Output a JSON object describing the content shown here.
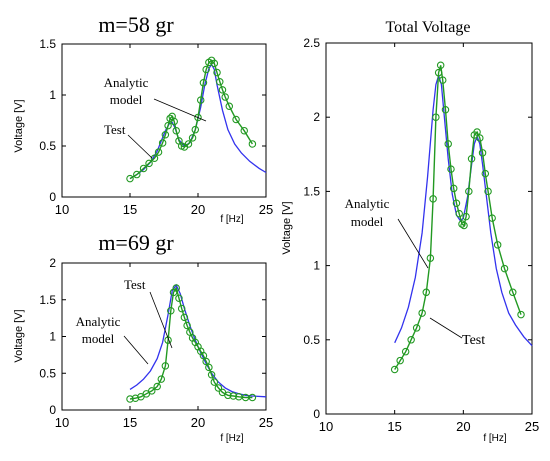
{
  "chart_data": [
    {
      "id": "m58",
      "type": "line",
      "title": "m=58 gr",
      "xlabel": "f [Hz]",
      "ylabel": "Voltage [V]",
      "xlim": [
        10,
        25
      ],
      "ylim": [
        0,
        1.5
      ],
      "xticks": [
        10,
        15,
        20,
        25
      ],
      "yticks": [
        0,
        0.5,
        1,
        1.5
      ],
      "tick_labels_x": [
        "10",
        "15",
        "20",
        "25"
      ],
      "tick_labels_y": [
        "0",
        "0.5",
        "1",
        "1.5"
      ],
      "annotations": [
        {
          "lines": [
            "Analytic",
            "model"
          ]
        },
        {
          "lines": [
            "Test"
          ]
        }
      ],
      "series": [
        {
          "name": "Analytic model",
          "color": "#3333ee",
          "style": "line",
          "x": [
            15.0,
            15.5,
            16.0,
            16.5,
            17.0,
            17.3,
            17.6,
            17.9,
            18.1,
            18.3,
            18.6,
            19.0,
            19.4,
            19.8,
            20.2,
            20.5,
            20.8,
            21.0,
            21.2,
            21.4,
            21.8,
            22.2,
            22.7,
            23.2,
            23.8,
            24.5,
            25.0
          ],
          "y": [
            0.18,
            0.22,
            0.27,
            0.34,
            0.45,
            0.55,
            0.65,
            0.72,
            0.73,
            0.68,
            0.56,
            0.5,
            0.53,
            0.66,
            0.88,
            1.1,
            1.26,
            1.3,
            1.25,
            1.1,
            0.85,
            0.66,
            0.52,
            0.43,
            0.35,
            0.28,
            0.24
          ]
        },
        {
          "name": "Test",
          "color": "#229922",
          "style": "line+marker",
          "x": [
            15.0,
            15.5,
            16.0,
            16.4,
            16.8,
            17.1,
            17.4,
            17.6,
            17.8,
            17.95,
            18.1,
            18.25,
            18.4,
            18.6,
            18.8,
            19.0,
            19.3,
            19.6,
            19.8,
            20.0,
            20.2,
            20.4,
            20.6,
            20.8,
            21.0,
            21.2,
            21.4,
            21.6,
            21.8,
            22.0,
            22.3,
            22.8,
            23.4,
            24.0
          ],
          "y": [
            0.18,
            0.22,
            0.28,
            0.33,
            0.38,
            0.44,
            0.53,
            0.61,
            0.7,
            0.77,
            0.79,
            0.74,
            0.65,
            0.55,
            0.5,
            0.49,
            0.52,
            0.58,
            0.66,
            0.78,
            0.95,
            1.12,
            1.25,
            1.32,
            1.34,
            1.31,
            1.22,
            1.13,
            1.05,
            0.98,
            0.89,
            0.76,
            0.65,
            0.52
          ]
        }
      ]
    },
    {
      "id": "m69",
      "type": "line",
      "title": "m=69 gr",
      "xlabel": "f [Hz]",
      "ylabel": "Voltage [V]",
      "xlim": [
        10,
        25
      ],
      "ylim": [
        0,
        2
      ],
      "xticks": [
        10,
        15,
        20,
        25
      ],
      "yticks": [
        0,
        0.5,
        1,
        1.5,
        2
      ],
      "tick_labels_x": [
        "10",
        "15",
        "20",
        "25"
      ],
      "tick_labels_y": [
        "0",
        "0.5",
        "1",
        "1.5",
        "2"
      ],
      "annotations": [
        {
          "lines": [
            "Test"
          ]
        },
        {
          "lines": [
            "Analytic",
            "model"
          ]
        }
      ],
      "series": [
        {
          "name": "Analytic model",
          "color": "#3333ee",
          "style": "line",
          "x": [
            15.0,
            15.5,
            16.0,
            16.5,
            17.0,
            17.4,
            17.8,
            18.1,
            18.4,
            18.7,
            19.0,
            19.4,
            19.8,
            20.2,
            20.6,
            21.0,
            21.5,
            22.0,
            22.5,
            23.0,
            23.5,
            24.0,
            25.0
          ],
          "y": [
            0.28,
            0.34,
            0.42,
            0.53,
            0.7,
            0.92,
            1.3,
            1.62,
            1.7,
            1.58,
            1.38,
            1.15,
            0.95,
            0.78,
            0.63,
            0.5,
            0.38,
            0.3,
            0.25,
            0.22,
            0.2,
            0.19,
            0.18
          ]
        },
        {
          "name": "Test",
          "color": "#229922",
          "style": "line+marker",
          "x": [
            15.0,
            15.4,
            15.8,
            16.2,
            16.6,
            17.0,
            17.3,
            17.6,
            17.8,
            18.0,
            18.2,
            18.4,
            18.6,
            18.8,
            19.0,
            19.2,
            19.4,
            19.6,
            19.8,
            20.0,
            20.2,
            20.4,
            20.6,
            20.8,
            21.0,
            21.2,
            21.5,
            21.8,
            22.2,
            22.6,
            23.0,
            23.5,
            24.0
          ],
          "y": [
            0.15,
            0.16,
            0.18,
            0.22,
            0.26,
            0.32,
            0.42,
            0.6,
            0.95,
            1.35,
            1.6,
            1.66,
            1.52,
            1.38,
            1.26,
            1.15,
            1.06,
            0.98,
            0.92,
            0.86,
            0.8,
            0.74,
            0.66,
            0.58,
            0.48,
            0.38,
            0.3,
            0.24,
            0.2,
            0.19,
            0.18,
            0.17,
            0.17
          ]
        }
      ]
    },
    {
      "id": "total",
      "type": "line",
      "title": "Total Voltage",
      "xlabel": "f [Hz]",
      "ylabel": "Voltage [V]",
      "xlim": [
        10,
        25
      ],
      "ylim": [
        0,
        2.5
      ],
      "xticks": [
        10,
        15,
        20,
        25
      ],
      "yticks": [
        0,
        0.5,
        1,
        1.5,
        2,
        2.5
      ],
      "tick_labels_x": [
        "10",
        "15",
        "20",
        "25"
      ],
      "tick_labels_y": [
        "0",
        "0.5",
        "1",
        "1.5",
        "2",
        "2.5"
      ],
      "annotations": [
        {
          "lines": [
            "Analytic",
            "model"
          ]
        },
        {
          "lines": [
            "Test"
          ]
        }
      ],
      "series": [
        {
          "name": "Analytic model",
          "color": "#3333ee",
          "style": "line",
          "x": [
            15.0,
            15.5,
            16.0,
            16.5,
            17.0,
            17.4,
            17.8,
            18.0,
            18.2,
            18.4,
            18.6,
            18.9,
            19.2,
            19.5,
            19.8,
            20.0,
            20.3,
            20.6,
            20.8,
            21.0,
            21.2,
            21.4,
            21.7,
            22.0,
            22.4,
            22.8,
            23.3,
            23.8,
            24.4,
            25.0
          ],
          "y": [
            0.48,
            0.58,
            0.72,
            0.92,
            1.22,
            1.6,
            2.05,
            2.22,
            2.28,
            2.22,
            2.02,
            1.72,
            1.48,
            1.34,
            1.3,
            1.32,
            1.46,
            1.68,
            1.82,
            1.87,
            1.82,
            1.68,
            1.45,
            1.22,
            0.98,
            0.82,
            0.68,
            0.6,
            0.52,
            0.46
          ]
        },
        {
          "name": "Test",
          "color": "#229922",
          "style": "line+marker",
          "x": [
            15.0,
            15.4,
            15.8,
            16.2,
            16.6,
            17.0,
            17.3,
            17.6,
            17.8,
            18.0,
            18.2,
            18.35,
            18.5,
            18.7,
            18.9,
            19.1,
            19.3,
            19.5,
            19.7,
            19.9,
            20.05,
            20.2,
            20.4,
            20.6,
            20.8,
            21.0,
            21.2,
            21.4,
            21.6,
            21.8,
            22.1,
            22.5,
            23.0,
            23.6,
            24.2
          ],
          "y": [
            0.3,
            0.36,
            0.42,
            0.5,
            0.58,
            0.68,
            0.82,
            1.05,
            1.45,
            2.0,
            2.3,
            2.35,
            2.25,
            2.05,
            1.82,
            1.65,
            1.52,
            1.42,
            1.35,
            1.28,
            1.27,
            1.33,
            1.5,
            1.72,
            1.88,
            1.9,
            1.86,
            1.76,
            1.62,
            1.5,
            1.32,
            1.14,
            0.98,
            0.82,
            0.67
          ]
        }
      ]
    }
  ]
}
